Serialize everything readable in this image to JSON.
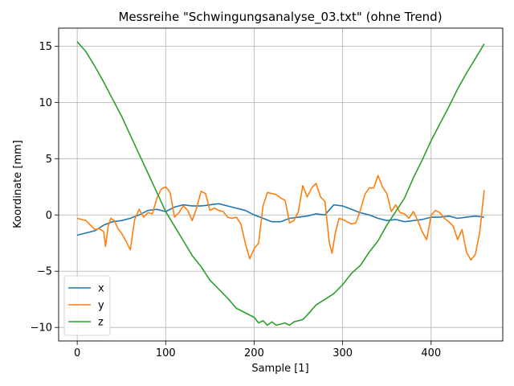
{
  "chart_data": {
    "type": "line",
    "title": "Messreihe \"Schwingungsanalyse_03.txt\" (ohne Trend)",
    "xlabel": "Sample [1]",
    "ylabel": "Koordinate [mm]",
    "xlim": [
      -21,
      481
    ],
    "ylim": [
      -11.2,
      16.6
    ],
    "xticks": [
      0,
      100,
      200,
      300,
      400
    ],
    "yticks": [
      -10,
      -5,
      0,
      5,
      10,
      15
    ],
    "xtick_labels": [
      "0",
      "100",
      "200",
      "300",
      "400"
    ],
    "ytick_labels": [
      "−10",
      "−5",
      "0",
      "5",
      "10",
      "15"
    ],
    "grid": true,
    "legend_position": "lower-left",
    "series": [
      {
        "name": "x",
        "color": "#1f77b4",
        "x": [
          0,
          20,
          30,
          40,
          50,
          60,
          70,
          80,
          90,
          100,
          110,
          120,
          130,
          140,
          150,
          160,
          170,
          180,
          190,
          200,
          210,
          220,
          230,
          240,
          250,
          260,
          270,
          280,
          290,
          300,
          310,
          320,
          330,
          340,
          350,
          360,
          370,
          380,
          390,
          400,
          410,
          420,
          430,
          440,
          450,
          460
        ],
        "y": [
          -1.8,
          -1.4,
          -0.9,
          -0.6,
          -0.5,
          -0.3,
          0.0,
          0.4,
          0.5,
          0.3,
          0.7,
          0.9,
          0.8,
          0.8,
          0.9,
          1.0,
          0.8,
          0.6,
          0.4,
          0.0,
          -0.3,
          -0.6,
          -0.6,
          -0.3,
          -0.2,
          -0.1,
          0.1,
          0.0,
          0.9,
          0.8,
          0.5,
          0.2,
          0.0,
          -0.3,
          -0.5,
          -0.4,
          -0.6,
          -0.5,
          -0.4,
          -0.2,
          -0.2,
          -0.1,
          -0.3,
          -0.2,
          -0.1,
          -0.2
        ]
      },
      {
        "name": "y",
        "color": "#ff7f0e",
        "x": [
          0,
          5,
          10,
          15,
          20,
          25,
          30,
          32,
          35,
          38,
          42,
          46,
          50,
          55,
          60,
          65,
          70,
          75,
          80,
          85,
          90,
          95,
          100,
          105,
          110,
          115,
          120,
          125,
          130,
          135,
          140,
          145,
          150,
          155,
          160,
          165,
          170,
          175,
          180,
          185,
          190,
          195,
          200,
          205,
          210,
          215,
          220,
          225,
          230,
          235,
          240,
          245,
          250,
          255,
          260,
          265,
          270,
          275,
          280,
          285,
          288,
          292,
          296,
          300,
          305,
          310,
          315,
          320,
          325,
          330,
          335,
          340,
          345,
          350,
          355,
          360,
          365,
          370,
          375,
          380,
          385,
          390,
          395,
          400,
          405,
          410,
          415,
          420,
          425,
          430,
          435,
          440,
          445,
          450,
          455,
          460
        ],
        "y": [
          -0.3,
          -0.4,
          -0.5,
          -0.9,
          -1.3,
          -1.2,
          -1.5,
          -2.8,
          -1.0,
          -0.3,
          -0.5,
          -1.2,
          -1.6,
          -2.3,
          -3.1,
          -0.4,
          0.5,
          -0.2,
          0.2,
          0.1,
          1.5,
          2.3,
          2.5,
          2.0,
          -0.2,
          0.2,
          0.8,
          0.4,
          -0.5,
          0.6,
          2.1,
          1.9,
          0.4,
          0.6,
          0.4,
          0.3,
          -0.2,
          -0.3,
          -0.2,
          -0.8,
          -2.5,
          -3.9,
          -3.0,
          -2.5,
          0.8,
          2.0,
          1.9,
          1.8,
          1.5,
          1.3,
          -0.7,
          -0.5,
          0.3,
          2.6,
          1.6,
          2.4,
          2.8,
          1.6,
          1.2,
          -2.5,
          -3.4,
          -1.5,
          -0.3,
          -0.4,
          -0.6,
          -0.8,
          -0.7,
          0.4,
          1.8,
          2.4,
          2.4,
          3.5,
          2.5,
          1.9,
          0.3,
          0.9,
          0.2,
          0.1,
          -0.3,
          0.3,
          -0.5,
          -1.5,
          -2.2,
          0.0,
          0.4,
          0.2,
          -0.3,
          -0.6,
          -1.0,
          -2.2,
          -1.3,
          -3.3,
          -4.0,
          -3.5,
          -1.5,
          2.2
        ]
      },
      {
        "name": "z",
        "color": "#2ca02c",
        "x": [
          0,
          10,
          20,
          30,
          40,
          50,
          60,
          70,
          80,
          90,
          100,
          110,
          120,
          130,
          140,
          150,
          160,
          170,
          180,
          190,
          200,
          205,
          210,
          215,
          220,
          225,
          230,
          235,
          240,
          245,
          250,
          255,
          260,
          270,
          280,
          290,
          300,
          310,
          320,
          330,
          340,
          350,
          360,
          370,
          380,
          390,
          400,
          410,
          420,
          430,
          440,
          450,
          460
        ],
        "y": [
          15.4,
          14.5,
          13.2,
          11.8,
          10.3,
          8.8,
          7.1,
          5.4,
          3.7,
          2.0,
          0.3,
          -1.0,
          -2.3,
          -3.6,
          -4.6,
          -5.8,
          -6.6,
          -7.4,
          -8.3,
          -8.7,
          -9.1,
          -9.6,
          -9.4,
          -9.8,
          -9.5,
          -9.8,
          -9.7,
          -9.6,
          -9.8,
          -9.5,
          -9.4,
          -9.3,
          -8.9,
          -8.0,
          -7.5,
          -7.0,
          -6.2,
          -5.2,
          -4.5,
          -3.3,
          -2.3,
          -0.9,
          0.3,
          1.5,
          3.3,
          4.9,
          6.6,
          8.1,
          9.6,
          11.2,
          12.6,
          13.9,
          15.2
        ]
      }
    ]
  }
}
